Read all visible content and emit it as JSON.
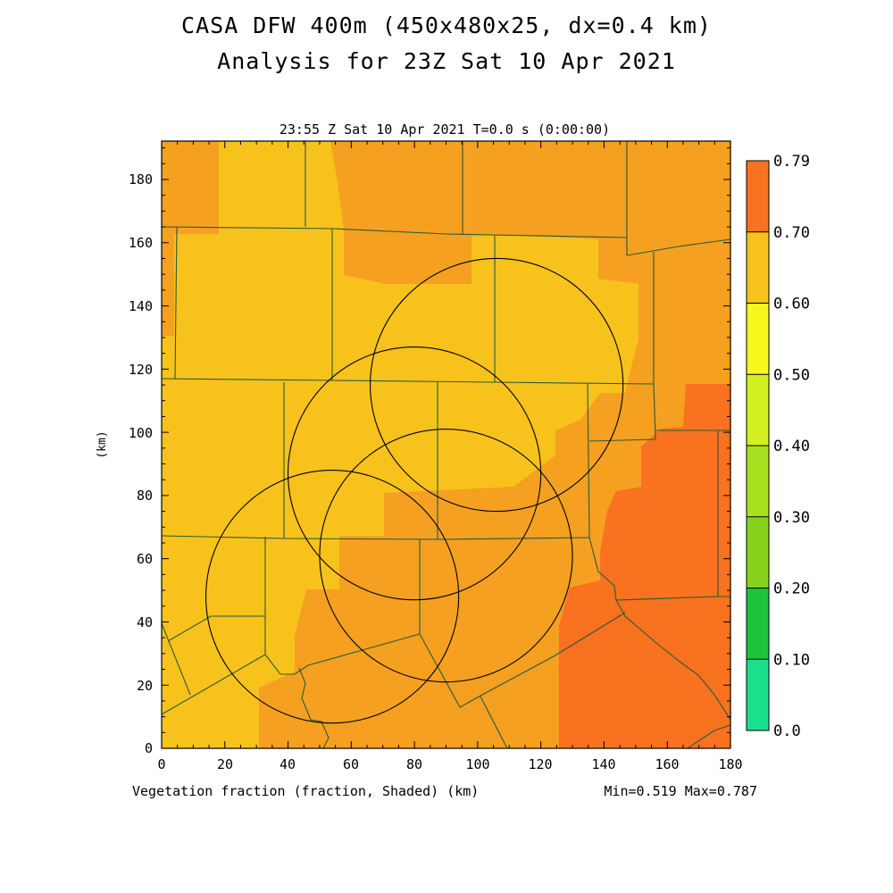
{
  "title_line1": "CASA DFW 400m (450x480x25, dx=0.4 km)",
  "title_line2": "Analysis for 23Z Sat 10 Apr 2021",
  "plot_time": "23:55 Z Sat 10 Apr 2021   T=0.0 s (0:00:00)",
  "field_label": "Vegetation fraction (fraction, Shaded)  (km)",
  "stats": "Min=0.519 Max=0.787",
  "axes": {
    "ylabel": "(km)",
    "x_ticks": [
      "0",
      "20",
      "40",
      "60",
      "80",
      "100",
      "120",
      "140",
      "160",
      "180"
    ],
    "y_ticks": [
      "0",
      "20",
      "40",
      "60",
      "80",
      "100",
      "120",
      "140",
      "160",
      "180"
    ]
  },
  "colorbar": {
    "labels": [
      "0.0",
      "0.10",
      "0.20",
      "0.30",
      "0.40",
      "0.50",
      "0.60",
      "0.70",
      "0.79"
    ],
    "colors": [
      "#18e08c",
      "#1bc43a",
      "#86d21c",
      "#a7e01f",
      "#d2f01f",
      "#f6f71a",
      "#f8c21c",
      "#f5a021",
      "#f87220"
    ]
  },
  "map_colors": {
    "c050": "#f8c21c",
    "c060": "#f5a021",
    "c070": "#f87220",
    "boundary": "#2a5a3a",
    "radar_ring": "#000000"
  },
  "chart_data": {
    "type": "heatmap",
    "field": "Vegetation fraction",
    "units": "fraction",
    "xlim": [
      0,
      180
    ],
    "ylim": [
      0,
      192
    ],
    "min": 0.519,
    "max": 0.787,
    "levels": [
      0.0,
      0.1,
      0.2,
      0.3,
      0.4,
      0.5,
      0.6,
      0.7,
      0.79
    ],
    "radar_rings": [
      {
        "center": [
          54,
          48
        ],
        "radius_km": 40
      },
      {
        "center": [
          80,
          87
        ],
        "radius_km": 40
      },
      {
        "center": [
          90,
          61
        ],
        "radius_km": 40
      },
      {
        "center": [
          106,
          115
        ],
        "radius_km": 40
      }
    ]
  }
}
